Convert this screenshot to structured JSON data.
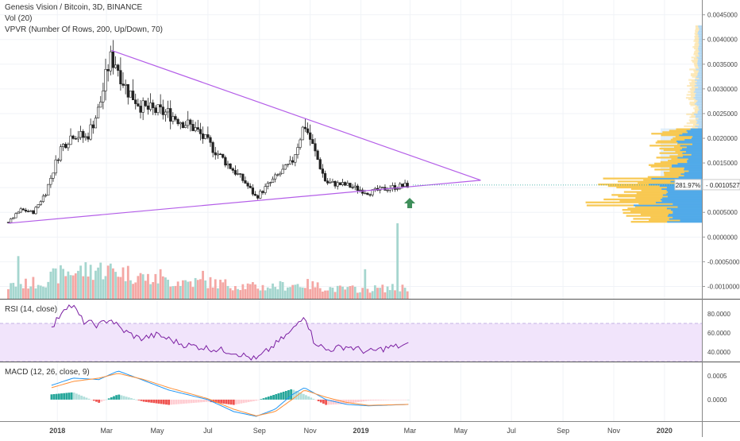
{
  "legend": {
    "symbol_line": "Genesis Vision / Bitcoin, 3D, BINANCE",
    "vol_line": "Vol (20)",
    "vpvr_line": "VPVR (Number Of Rows, 200, Up/Down, 70)"
  },
  "rsi_title": "RSI (14, close)",
  "macd_title": "MACD (12, 26, close, 9)",
  "last_price": {
    "change_label": "281.97%",
    "price_label": "0.0010527"
  },
  "colors": {
    "up": "#26a69a",
    "down": "#ef5350",
    "vol_up": "#a5d6cf",
    "vol_down": "#f4a7a4",
    "trendline": "#b45ee8",
    "rsi_line": "#7b1fa2",
    "rsi_band": "#f1e4fb",
    "macd_line": "#2196f3",
    "signal_line": "#ff8f36",
    "vpvr_up": "#4ba6e8",
    "vpvr_down": "#f8c64b",
    "arrow": "#3f8f5b"
  },
  "x_axis": {
    "ticks": [
      "2018",
      "Mar",
      "May",
      "Jul",
      "Sep",
      "Nov",
      "2019",
      "Mar",
      "May",
      "Jul",
      "Sep",
      "Nov",
      "2020"
    ],
    "tick_dates": [
      "2018-01-01",
      "2018-03-01",
      "2018-05-01",
      "2018-07-01",
      "2018-09-01",
      "2018-11-01",
      "2019-01-01",
      "2019-03-01",
      "2019-05-01",
      "2019-07-01",
      "2019-09-01",
      "2019-11-01",
      "2020-01-01"
    ]
  },
  "price_axis": {
    "ticks": [
      "0.0045000",
      "0.0040000",
      "0.0035000",
      "0.0030000",
      "0.0025000",
      "0.0020000",
      "0.0015000",
      "0.0010000",
      "0.0005000",
      "0.0000000",
      "-0.0005000",
      "-0.0010000"
    ]
  },
  "rsi_axis": {
    "ticks": [
      "80.0000",
      "60.0000",
      "40.0000"
    ]
  },
  "macd_axis": {
    "ticks": [
      "0.0005",
      "0.0000"
    ]
  },
  "chart_data": {
    "type": "candlestick",
    "title": "Genesis Vision / Bitcoin, 3D, BINANCE",
    "price_range": [
      -0.00125,
      0.0048
    ],
    "x_range": [
      "2017-10-24",
      "2020-02-15"
    ],
    "candles_start": "2017-11-03",
    "candle_interval_days": 3,
    "candles_end": "2019-02-27",
    "price_path": [
      [
        "2017-11-03",
        0.0003
      ],
      [
        "2017-11-18",
        0.00055
      ],
      [
        "2017-12-03",
        0.0005
      ],
      [
        "2017-12-18",
        0.0009
      ],
      [
        "2018-01-05",
        0.0018
      ],
      [
        "2018-01-20",
        0.0021
      ],
      [
        "2018-02-05",
        0.002
      ],
      [
        "2018-02-20",
        0.0026
      ],
      [
        "2018-03-05",
        0.0036
      ],
      [
        "2018-03-12",
        0.00355
      ],
      [
        "2018-03-25",
        0.003
      ],
      [
        "2018-04-15",
        0.0026
      ],
      [
        "2018-05-15",
        0.0025
      ],
      [
        "2018-06-15",
        0.0022
      ],
      [
        "2018-07-15",
        0.00165
      ],
      [
        "2018-08-15",
        0.0011
      ],
      [
        "2018-08-28",
        0.0008
      ],
      [
        "2018-09-20",
        0.0012
      ],
      [
        "2018-10-10",
        0.0015
      ],
      [
        "2018-10-25",
        0.0023
      ],
      [
        "2018-11-05",
        0.0018
      ],
      [
        "2018-11-20",
        0.0011
      ],
      [
        "2018-12-15",
        0.00105
      ],
      [
        "2019-01-10",
        0.0009
      ],
      [
        "2019-02-05",
        0.001
      ],
      [
        "2019-02-27",
        0.00105
      ]
    ],
    "volume_path": [
      [
        "2017-11-03",
        0.4
      ],
      [
        "2017-12-10",
        0.5
      ],
      [
        "2018-01-10",
        0.8
      ],
      [
        "2018-02-20",
        0.9
      ],
      [
        "2018-03-15",
        0.85
      ],
      [
        "2018-05-01",
        0.55
      ],
      [
        "2018-07-01",
        0.5
      ],
      [
        "2018-09-01",
        0.35
      ],
      [
        "2018-10-25",
        0.45
      ],
      [
        "2018-12-01",
        0.3
      ],
      [
        "2019-01-10",
        0.3
      ],
      [
        "2019-02-27",
        0.35
      ]
    ],
    "volume_spikes": [
      [
        "2017-11-14",
        1.3
      ],
      [
        "2018-02-18",
        0.95
      ],
      [
        "2018-05-06",
        0.9
      ],
      [
        "2018-06-26",
        0.85
      ],
      [
        "2019-01-07",
        0.9
      ],
      [
        "2019-02-13",
        2.3
      ]
    ],
    "volume_scale_note": "relative volume, largest spike = 2.3",
    "trendlines": [
      {
        "from": [
          "2018-03-07",
          0.00378
        ],
        "to": [
          "2019-05-25",
          0.00115
        ]
      },
      {
        "from": [
          "2017-11-03",
          0.00028
        ],
        "to": [
          "2019-05-25",
          0.00115
        ]
      }
    ],
    "last_price": 0.0010527,
    "vpvr_profile_note": "horizontal volume-at-price histogram on right edge, blue = up volume, yellow = down volume",
    "vpvr_value_area": [
      0.0003,
      0.0022
    ],
    "rsi": {
      "range": [
        30,
        95
      ],
      "guides": [
        70,
        30
      ],
      "path": [
        [
          "2017-12-25",
          64
        ],
        [
          "2018-01-10",
          88
        ],
        [
          "2018-01-20",
          88
        ],
        [
          "2018-02-01",
          72
        ],
        [
          "2018-02-20",
          68
        ],
        [
          "2018-03-05",
          75
        ],
        [
          "2018-03-20",
          63
        ],
        [
          "2018-04-10",
          54
        ],
        [
          "2018-05-01",
          58
        ],
        [
          "2018-06-01",
          48
        ],
        [
          "2018-07-01",
          44
        ],
        [
          "2018-08-01",
          40
        ],
        [
          "2018-08-28",
          32
        ],
        [
          "2018-09-20",
          48
        ],
        [
          "2018-10-10",
          62
        ],
        [
          "2018-10-25",
          80
        ],
        [
          "2018-11-05",
          52
        ],
        [
          "2018-11-20",
          42
        ],
        [
          "2018-12-15",
          46
        ],
        [
          "2019-01-10",
          40
        ],
        [
          "2019-02-05",
          45
        ],
        [
          "2019-02-27",
          47
        ]
      ]
    },
    "macd": {
      "range": [
        -0.00045,
        0.00078
      ],
      "macd_path": [
        [
          "2017-12-25",
          0.0003
        ],
        [
          "2018-01-20",
          0.00045
        ],
        [
          "2018-02-20",
          0.00042
        ],
        [
          "2018-03-15",
          0.0006
        ],
        [
          "2018-04-15",
          0.0004
        ],
        [
          "2018-05-15",
          0.0002
        ],
        [
          "2018-07-01",
          0.0
        ],
        [
          "2018-08-01",
          -0.00025
        ],
        [
          "2018-08-28",
          -0.00035
        ],
        [
          "2018-09-20",
          -0.0002
        ],
        [
          "2018-10-10",
          0.0001
        ],
        [
          "2018-10-25",
          0.00025
        ],
        [
          "2018-11-20",
          0.0
        ],
        [
          "2018-12-15",
          -0.0001
        ],
        [
          "2019-01-10",
          -0.00013
        ],
        [
          "2019-02-27",
          -0.0001
        ]
      ],
      "signal_path": [
        [
          "2017-12-25",
          0.00025
        ],
        [
          "2018-01-20",
          0.00038
        ],
        [
          "2018-02-20",
          0.00045
        ],
        [
          "2018-03-15",
          0.00055
        ],
        [
          "2018-04-15",
          0.00042
        ],
        [
          "2018-05-15",
          0.00025
        ],
        [
          "2018-07-01",
          2e-05
        ],
        [
          "2018-08-01",
          -0.0002
        ],
        [
          "2018-08-28",
          -0.00034
        ],
        [
          "2018-09-20",
          -0.00025
        ],
        [
          "2018-10-10",
          0.0
        ],
        [
          "2018-10-25",
          0.0002
        ],
        [
          "2018-11-20",
          5e-05
        ],
        [
          "2018-12-15",
          -6e-05
        ],
        [
          "2019-01-10",
          -0.00012
        ],
        [
          "2019-02-27",
          -0.0001
        ]
      ]
    }
  }
}
